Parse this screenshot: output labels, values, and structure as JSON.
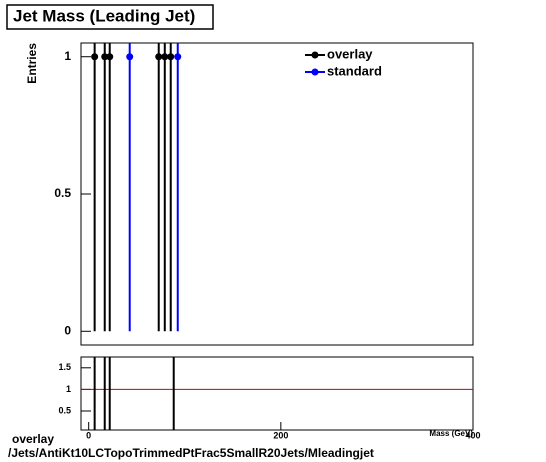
{
  "chart_data": [
    {
      "type": "errorbar",
      "title": "Jet Mass (Leading Jet)",
      "y_label": "Entries",
      "xlim": [
        -8,
        400
      ],
      "ylim": [
        -0.05,
        1.05
      ],
      "yticks": [
        0,
        0.5,
        1
      ],
      "legend": "top-right",
      "series": [
        {
          "name": "overlay",
          "color": "#000000",
          "x": [
            6.2,
            16.7,
            21.9,
            72.9,
            79.2,
            85.4
          ],
          "values": [
            1,
            1,
            1,
            1,
            1,
            1
          ],
          "errors": [
            1,
            1,
            1,
            1,
            1,
            1
          ]
        },
        {
          "name": "standard",
          "color": "#0000ff",
          "x": [
            42.7,
            92.7
          ],
          "values": [
            1,
            1
          ],
          "errors": [
            1,
            1
          ]
        }
      ]
    },
    {
      "type": "ratio",
      "x_label": "Mass (GeV)",
      "xlim": [
        -8,
        400
      ],
      "ylim": [
        0.06,
        1.75
      ],
      "xticks": [
        0,
        200,
        400
      ],
      "yticks": [
        0.5,
        1,
        1.5
      ],
      "reference": 1,
      "reference_color": "#cc0000",
      "series": [
        {
          "color": "#000000",
          "x": [
            6.2,
            16.7,
            21.9,
            88.5
          ],
          "values": [
            1,
            1,
            1,
            1
          ],
          "errors": [
            1,
            1,
            1,
            1
          ]
        }
      ]
    }
  ],
  "footer": {
    "label": "overlay",
    "path": "/Jets/AntiKt10LCTopoTrimmedPtFrac5SmallR20Jets/Mleadingjet"
  }
}
